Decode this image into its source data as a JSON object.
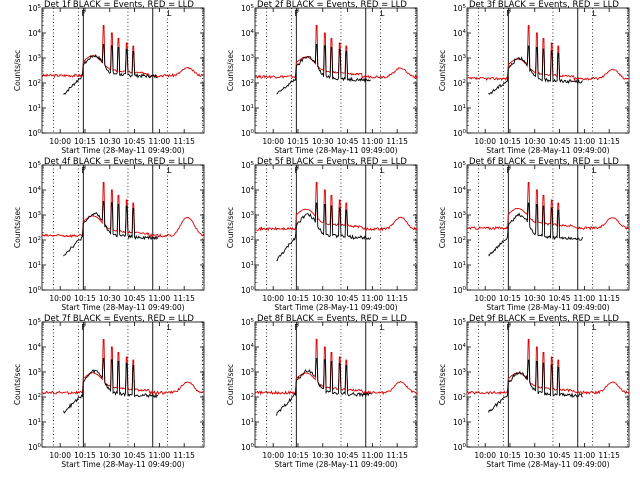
{
  "panels": [
    {
      "title": "Det 1f BLACK = Events, RED = LLD"
    },
    {
      "title": "Det 2f BLACK = Events, RED = LLD"
    },
    {
      "title": "Det 3f BLACK = Events, RED = LLD"
    },
    {
      "title": "Det 4f BLACK = Events, RED = LLD"
    },
    {
      "title": "Det 5f BLACK = Events, RED = LLD"
    },
    {
      "title": "Det 6f BLACK = Events, RED = LLD"
    },
    {
      "title": "Det 7f BLACK = Events, RED = LLD"
    },
    {
      "title": "Det 8f BLACK = Events, RED = LLD"
    },
    {
      "title": "Det 9f BLACK = Events, RED = LLD"
    }
  ],
  "colors": {
    "events": "#000000",
    "lld": "#dd0000",
    "axes": "#000000"
  },
  "chart_data": {
    "type": "line",
    "layout": "3x3 small multiples",
    "xlabel": "Start Time (28-May-11 09:49:00)",
    "ylabel": "Counts/sec",
    "x_ticks": [
      "10:00",
      "10:15",
      "10:30",
      "10:45",
      "11:00",
      "11:15"
    ],
    "y_ticks": [
      "10^0",
      "10^1",
      "10^2",
      "10^3",
      "10^4",
      "10^5"
    ],
    "y_scale": "log",
    "ylim": [
      1,
      100000
    ],
    "xlim": [
      "09:49",
      "11:27"
    ],
    "x_minutes": [
      0,
      11,
      26,
      41,
      56,
      71,
      86
    ],
    "dotted_lines": [
      "09:56",
      "10:11",
      "10:41",
      "11:05",
      "11:26"
    ],
    "solid_lines": [
      "10:14",
      "10:56"
    ],
    "series": [
      {
        "name": "Events",
        "color": "#000000"
      },
      {
        "name": "LLD",
        "color": "#dd0000"
      }
    ],
    "events_per_panel": [
      {
        "start": "10:02",
        "end": "10:59",
        "level": 180,
        "start_level": 35,
        "peak": 900,
        "spike_level": 3500
      },
      {
        "start": "10:02",
        "end": "10:59",
        "level": 130,
        "start_level": 35,
        "peak": 900,
        "spike_level": 3500
      },
      {
        "start": "10:02",
        "end": "10:59",
        "level": 110,
        "start_level": 35,
        "peak": 800,
        "spike_level": 3000
      },
      {
        "start": "10:02",
        "end": "10:59",
        "level": 120,
        "start_level": 25,
        "peak": 900,
        "spike_level": 3500
      },
      {
        "start": "10:02",
        "end": "10:59",
        "level": 120,
        "start_level": 15,
        "peak": 800,
        "spike_level": 3000
      },
      {
        "start": "10:02",
        "end": "10:59",
        "level": 110,
        "start_level": 25,
        "peak": 800,
        "spike_level": 3000
      },
      {
        "start": "10:02",
        "end": "10:59",
        "level": 110,
        "start_level": 25,
        "peak": 900,
        "spike_level": 3500
      },
      {
        "start": "10:02",
        "end": "10:59",
        "level": 120,
        "start_level": 20,
        "peak": 900,
        "spike_level": 3500
      },
      {
        "start": "10:02",
        "end": "10:59",
        "level": 110,
        "start_level": 25,
        "peak": 800,
        "spike_level": 3000
      }
    ],
    "lld_per_panel": [
      {
        "base": 200,
        "peak": 20000,
        "end_bump": 400
      },
      {
        "base": 180,
        "peak": 20000,
        "end_bump": 400
      },
      {
        "base": 150,
        "peak": 20000,
        "end_bump": 350
      },
      {
        "base": 150,
        "peak": 15000,
        "end_bump": 800
      },
      {
        "base": 280,
        "peak": 15000,
        "end_bump": 800
      },
      {
        "base": 300,
        "peak": 15000,
        "end_bump": 800
      },
      {
        "base": 150,
        "peak": 20000,
        "end_bump": 400
      },
      {
        "base": 150,
        "peak": 20000,
        "end_bump": 400
      },
      {
        "base": 150,
        "peak": 20000,
        "end_bump": 400
      }
    ],
    "lld_spike_times": [
      "10:26",
      "10:31",
      "10:35",
      "10:40",
      "10:44"
    ],
    "lld_spike_peaks": [
      20000,
      10000,
      6000,
      4000,
      3000
    ]
  }
}
